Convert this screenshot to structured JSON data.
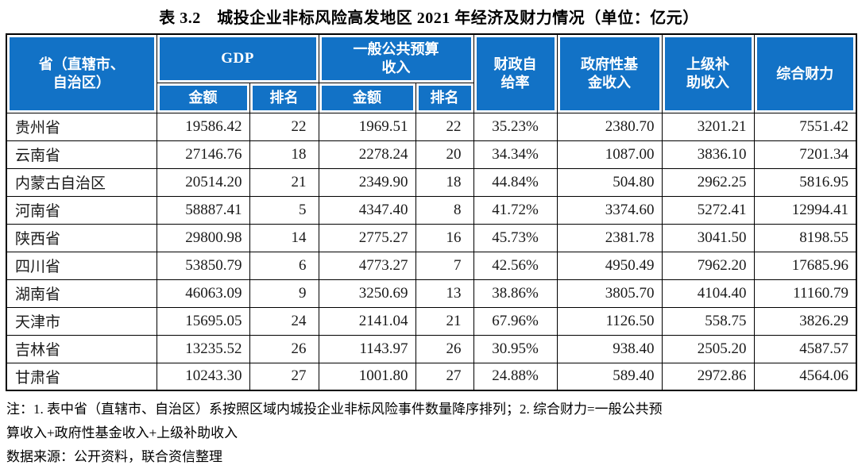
{
  "title": "表 3.2　城投企业非标风险高发地区 2021 年经济及财力情况（单位：亿元）",
  "table": {
    "header": {
      "province": "省（直辖市、\n自治区）",
      "gdp": "GDP",
      "budget_revenue": "一般公共预算\n收入",
      "gdp_amount": "金额",
      "gdp_rank": "排名",
      "budget_amount": "金额",
      "budget_rank": "排名",
      "fiscal_self_rate": "财政自\n给率",
      "gov_fund_revenue": "政府性基\n金收入",
      "subsidy_revenue": "上级补\n助收入",
      "comprehensive_power": "综合财力"
    },
    "rows": [
      [
        "贵州省",
        "19586.42",
        "22",
        "1969.51",
        "22",
        "35.23%",
        "2380.70",
        "3201.21",
        "7551.42"
      ],
      [
        "云南省",
        "27146.76",
        "18",
        "2278.24",
        "20",
        "34.34%",
        "1087.00",
        "3836.10",
        "7201.34"
      ],
      [
        "内蒙古自治区",
        "20514.20",
        "21",
        "2349.90",
        "18",
        "44.84%",
        "504.80",
        "2962.25",
        "5816.95"
      ],
      [
        "河南省",
        "58887.41",
        "5",
        "4347.40",
        "8",
        "41.72%",
        "3374.60",
        "5272.41",
        "12994.41"
      ],
      [
        "陕西省",
        "29800.98",
        "14",
        "2775.27",
        "16",
        "45.73%",
        "2381.78",
        "3041.50",
        "8198.55"
      ],
      [
        "四川省",
        "53850.79",
        "6",
        "4773.27",
        "7",
        "42.56%",
        "4950.49",
        "7962.20",
        "17685.96"
      ],
      [
        "湖南省",
        "46063.09",
        "9",
        "3250.69",
        "13",
        "38.86%",
        "3805.70",
        "4104.40",
        "11160.79"
      ],
      [
        "天津市",
        "15695.05",
        "24",
        "2141.04",
        "21",
        "67.96%",
        "1126.50",
        "558.75",
        "3826.29"
      ],
      [
        "吉林省",
        "13235.52",
        "26",
        "1143.97",
        "26",
        "30.95%",
        "938.40",
        "2505.20",
        "4587.57"
      ],
      [
        "甘肃省",
        "10243.30",
        "27",
        "1001.80",
        "27",
        "24.88%",
        "589.40",
        "2972.86",
        "4564.06"
      ]
    ],
    "column_names": [
      "cell-province",
      "cell-gdp-amount",
      "cell-gdp-rank",
      "cell-budget-amount",
      "cell-budget-rank",
      "cell-fiscal-self-rate",
      "cell-gov-fund-revenue",
      "cell-subsidy-revenue",
      "cell-comprehensive-power"
    ]
  },
  "notes": {
    "line1": "注：1. 表中省（直辖市、自治区）系按照区域内城投企业非标风险事件数量降序排列；2. 综合财力=一般公共预",
    "line2": "算收入+政府性基金收入+上级补助收入",
    "source": "数据来源：公开资料，联合资信整理"
  },
  "colors": {
    "header_bg": "#1272C6",
    "header_text": "#FFFFFF",
    "border": "#000000"
  }
}
